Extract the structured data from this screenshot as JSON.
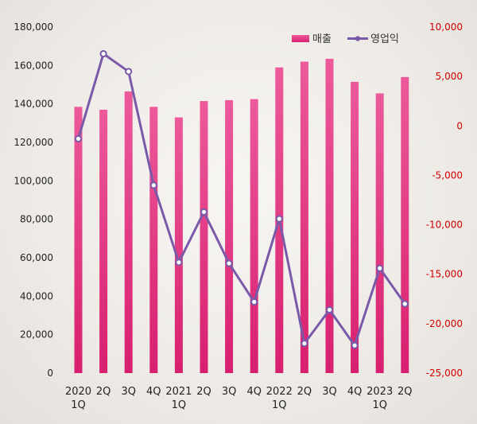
{
  "chart_data": {
    "type": "bar+line",
    "categories": [
      [
        "2020",
        "1Q"
      ],
      [
        "2Q"
      ],
      [
        "3Q"
      ],
      [
        "4Q"
      ],
      [
        "2021",
        "1Q"
      ],
      [
        "2Q"
      ],
      [
        "3Q"
      ],
      [
        "4Q"
      ],
      [
        "2022",
        "1Q"
      ],
      [
        "2Q"
      ],
      [
        "3Q"
      ],
      [
        "4Q"
      ],
      [
        "2023",
        "1Q"
      ],
      [
        "2Q"
      ]
    ],
    "series": [
      {
        "name": "매출",
        "kind": "bar",
        "axis": "left",
        "color": "#e8337f",
        "values": [
          138500,
          137000,
          146500,
          138500,
          133000,
          141500,
          142000,
          142500,
          159000,
          162000,
          163500,
          151500,
          145500,
          154000
        ]
      },
      {
        "name": "영업익",
        "kind": "line",
        "axis": "right",
        "color": "#7a5aa8",
        "values": [
          -1300,
          7300,
          5500,
          -6000,
          -13800,
          -8700,
          -13900,
          -17800,
          -9400,
          -22000,
          -18600,
          -22200,
          -14400,
          -18000
        ]
      }
    ],
    "y_left": {
      "min": 0,
      "max": 180000,
      "ticks": [
        "0",
        "20,000",
        "40,000",
        "60,000",
        "80,000",
        "100,000",
        "120,000",
        "140,000",
        "160,000",
        "180,000"
      ]
    },
    "y_right": {
      "min": -25000,
      "max": 10000,
      "ticks": [
        "-25,000",
        "-20,000",
        "-15,000",
        "-10,000",
        "-5,000",
        "0",
        "5,000",
        "10,000"
      ]
    },
    "legend": {
      "position": "top-right",
      "items": [
        "매출",
        "영업익"
      ]
    }
  }
}
